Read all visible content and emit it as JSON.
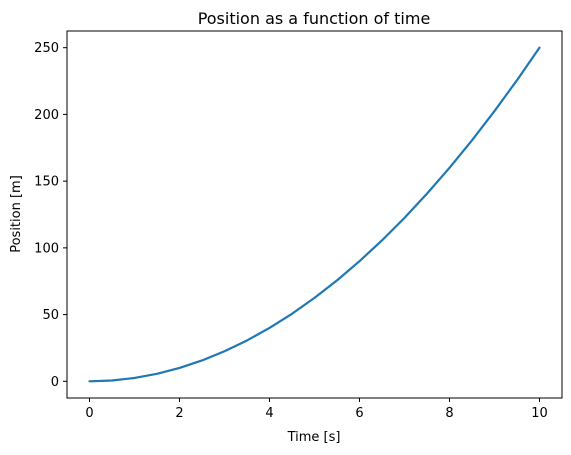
{
  "chart_data": {
    "type": "line",
    "title": "Position as a function of time",
    "xlabel": "Time [s]",
    "ylabel": "Position [m]",
    "xlim": [
      -0.5,
      10.5
    ],
    "ylim": [
      -12.5,
      262.5
    ],
    "xticks": [
      0,
      2,
      4,
      6,
      8,
      10
    ],
    "yticks": [
      0,
      50,
      100,
      150,
      200,
      250
    ],
    "x_tick_labels": [
      "0",
      "2",
      "4",
      "6",
      "8",
      "10"
    ],
    "y_tick_labels": [
      "0",
      "50",
      "100",
      "150",
      "200",
      "250"
    ],
    "grid": false,
    "series": [
      {
        "color": "#1f77b4",
        "x": [
          0,
          0.5,
          1,
          1.5,
          2,
          2.5,
          3,
          3.5,
          4,
          4.5,
          5,
          5.5,
          6,
          6.5,
          7,
          7.5,
          8,
          8.5,
          9,
          9.5,
          10
        ],
        "y": [
          0,
          0.625,
          2.5,
          5.625,
          10,
          15.625,
          22.5,
          30.625,
          40,
          50.625,
          62.5,
          75.625,
          90,
          105.625,
          122.5,
          140.625,
          160,
          180.625,
          202.5,
          225.625,
          250
        ]
      }
    ]
  }
}
